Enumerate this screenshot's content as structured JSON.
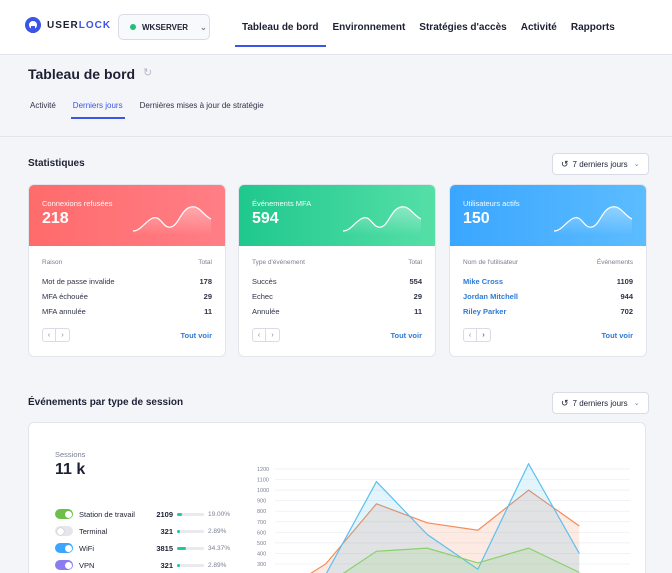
{
  "app": {
    "logo_brand": "USER",
    "logo_brand2": "LOCK",
    "server": "WKSERVER"
  },
  "nav": [
    "Tableau de bord",
    "Environnement",
    "Stratégies d'accès",
    "Activité",
    "Rapports"
  ],
  "colors": {
    "accent": "#3b55e6",
    "red": "#ff6b6b",
    "green": "#1fc88e",
    "blue": "#3aa6ff",
    "link": "#2e7bd6"
  },
  "page": {
    "title": "Tableau de bord",
    "refresh_icon": "refresh-icon",
    "tabs": [
      "Activité",
      "Derniers jours",
      "Dernières mises à jour de stratégie"
    ]
  },
  "stats": {
    "title": "Statistiques",
    "period": "7 derniers jours",
    "see_all": "Tout voir",
    "cards": [
      {
        "label": "Connexions refusées",
        "value": "218",
        "col1": "Raison",
        "col2": "Total",
        "rows": [
          {
            "name": "Mot de passe invalide",
            "count": "178"
          },
          {
            "name": "MFA échouée",
            "count": "29"
          },
          {
            "name": "MFA annulée",
            "count": "11"
          }
        ]
      },
      {
        "label": "Événements MFA",
        "value": "594",
        "col1": "Type d'événement",
        "col2": "Total",
        "rows": [
          {
            "name": "Succès",
            "count": "554"
          },
          {
            "name": "Echec",
            "count": "29"
          },
          {
            "name": "Annulée",
            "count": "11"
          }
        ]
      },
      {
        "label": "Utilisateurs actifs",
        "value": "150",
        "col1": "Nom de l'utilisateur",
        "col2": "Événements",
        "rows": [
          {
            "name": "Mike Cross",
            "count": "1109"
          },
          {
            "name": "Jordan Mitchell",
            "count": "944"
          },
          {
            "name": "Riley Parker",
            "count": "702"
          }
        ]
      }
    ]
  },
  "sessions": {
    "title": "Événements par type de session",
    "period": "7 derniers jours",
    "label": "Sessions",
    "total": "11 k",
    "rows": [
      {
        "name": "Station de travail",
        "count": "2109",
        "pct": "19.00%",
        "fraction": 0.19,
        "on": true,
        "color": "#6cc04a"
      },
      {
        "name": "Terminal",
        "count": "321",
        "pct": "2.89%",
        "fraction": 0.0289,
        "on": false,
        "color": "#e4e6ec"
      },
      {
        "name": "WiFi",
        "count": "3815",
        "pct": "34.37%",
        "fraction": 0.3437,
        "on": true,
        "color": "#3aa6ff"
      },
      {
        "name": "VPN",
        "count": "321",
        "pct": "2.89%",
        "fraction": 0.0289,
        "on": true,
        "color": "#8b7cf0"
      }
    ]
  },
  "chart_data": {
    "type": "area",
    "ylim": [
      0,
      1300
    ],
    "yticks": [
      1200,
      1100,
      1000,
      900,
      800,
      700,
      600,
      500,
      400,
      300
    ],
    "x": [
      0,
      1,
      2,
      3,
      4,
      5,
      6,
      7
    ],
    "series": [
      {
        "values": [
          0,
          300,
          870,
          690,
          620,
          1000,
          660,
          null
        ],
        "color": "#f28c5c"
      },
      {
        "values": [
          0,
          200,
          1080,
          580,
          250,
          1250,
          400,
          null
        ],
        "color": "#5cc0f0"
      },
      {
        "values": [
          0,
          100,
          420,
          450,
          310,
          450,
          220,
          null
        ],
        "color": "#8bd06b"
      }
    ]
  }
}
